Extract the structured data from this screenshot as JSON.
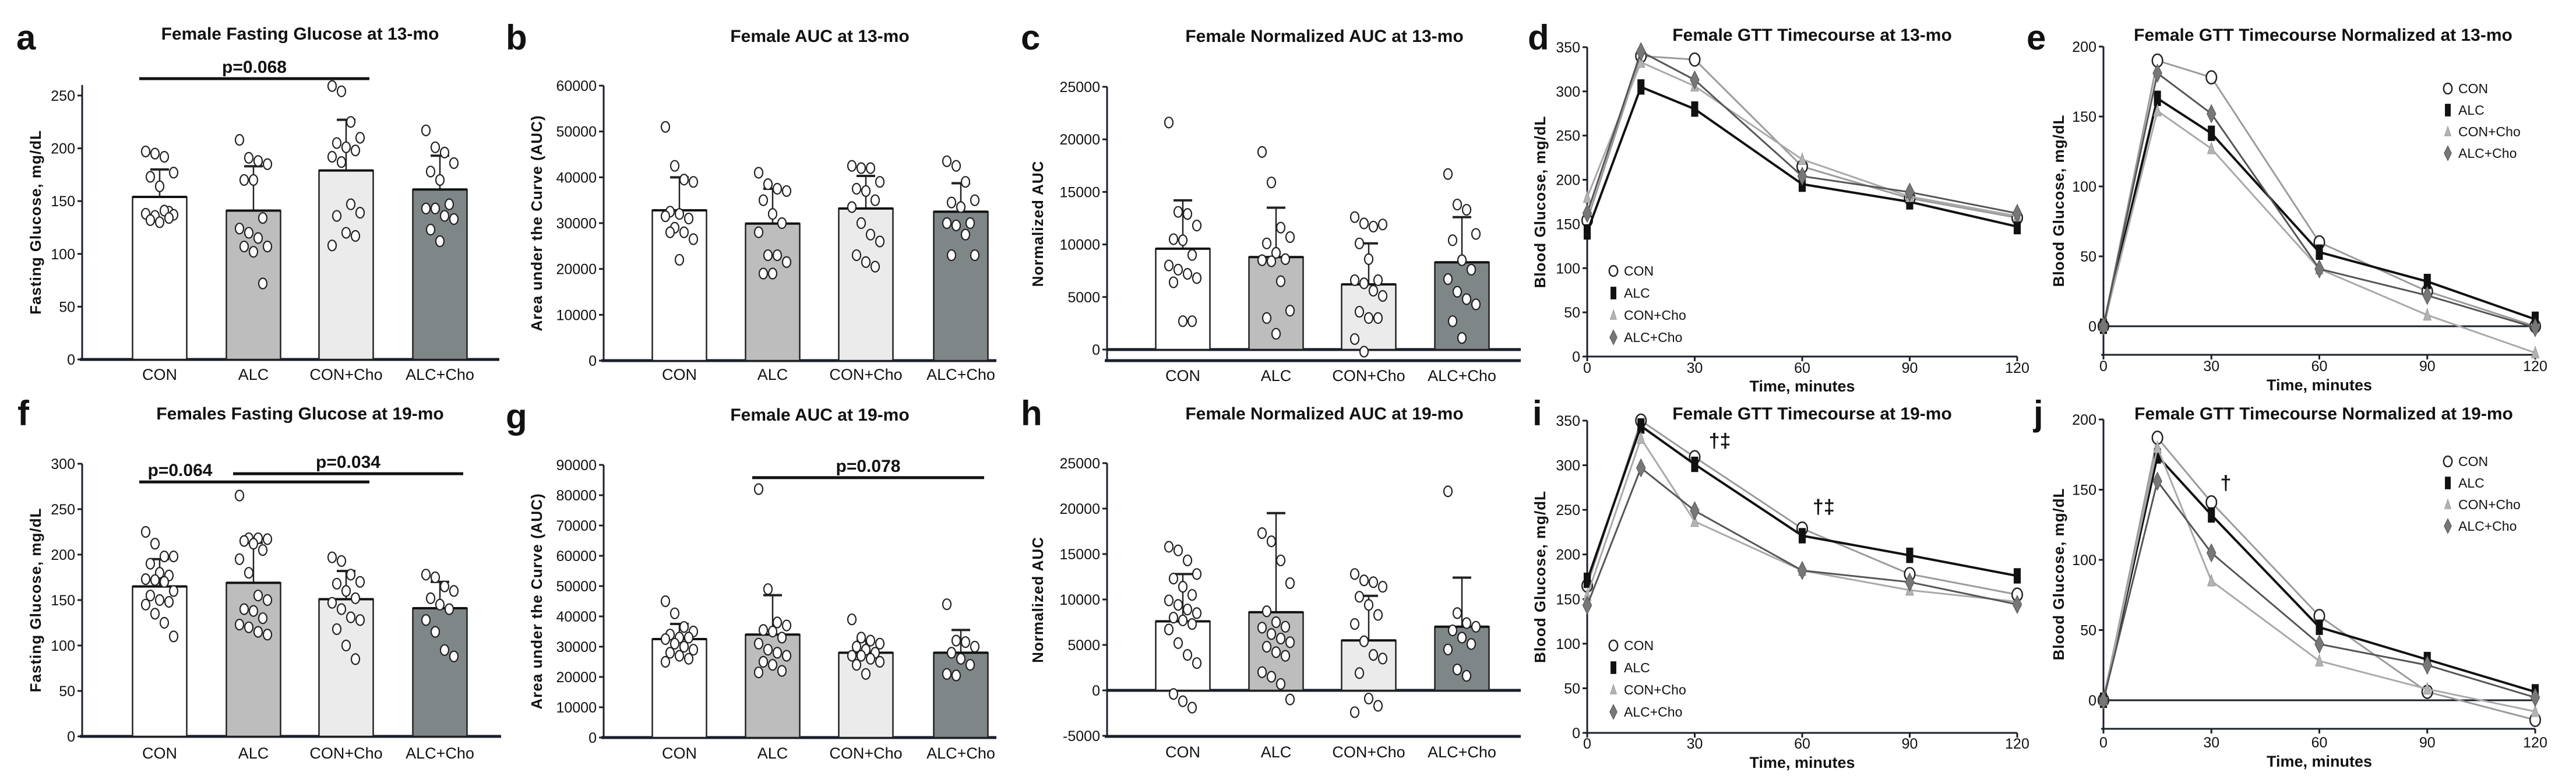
{
  "colors": {
    "CON": "#ffffff",
    "ALC": "#bdbdbd",
    "CON+Cho": "#ebebeb",
    "ALC+Cho": "#7f8688",
    "axis": "#1a1f2b"
  },
  "chart_data": [
    {
      "id": "a",
      "panel_label": "a",
      "type": "bar",
      "title": "Female Fasting Glucose at 13-mo",
      "ylabel": "Fasting Glucose, mg/dL",
      "xlabel": "",
      "categories": [
        "CON",
        "ALC",
        "CON+Cho",
        "ALC+Cho"
      ],
      "means": [
        154,
        141,
        179,
        161
      ],
      "error_upper": [
        180,
        183,
        227,
        193
      ],
      "points": [
        [
          197,
          195,
          192,
          177,
          173,
          164,
          140,
          138,
          136,
          141,
          137,
          132,
          130,
          134
        ],
        [
          208,
          191,
          188,
          185,
          170,
          170,
          134,
          124,
          120,
          115,
          107,
          107,
          102,
          72
        ],
        [
          259,
          254,
          225,
          210,
          205,
          201,
          198,
          192,
          187,
          147,
          139,
          136,
          120,
          117,
          108
        ],
        [
          217,
          201,
          196,
          186,
          178,
          170,
          147,
          143,
          143,
          136,
          133,
          123,
          112
        ]
      ],
      "yticks": [
        0,
        50,
        100,
        150,
        200,
        250
      ],
      "ylim": [
        0,
        260
      ],
      "significance": [
        {
          "label": "p=0.068",
          "from": "CON",
          "to": "CON+Cho",
          "y": 266
        }
      ]
    },
    {
      "id": "b",
      "panel_label": "b",
      "type": "bar",
      "title": "Female AUC at 13-mo",
      "ylabel": "Area under the Curve (AUC)",
      "xlabel": "",
      "categories": [
        "CON",
        "ALC",
        "CON+Cho",
        "ALC+Cho"
      ],
      "means": [
        32800,
        29900,
        33200,
        32500
      ],
      "error_upper": [
        40000,
        37500,
        40300,
        38700
      ],
      "points": [
        [
          51000,
          42500,
          39500,
          39000,
          32500,
          32000,
          31000,
          31500,
          29000,
          28000,
          26500,
          28000,
          22000
        ],
        [
          41000,
          38500,
          37500,
          37000,
          35000,
          32000,
          30000,
          28000,
          23000,
          23000,
          21500,
          19000,
          19000
        ],
        [
          42500,
          42000,
          42000,
          39000,
          37500,
          37000,
          35000,
          33500,
          30000,
          27500,
          26000,
          23000,
          21500,
          20500
        ],
        [
          43500,
          42500,
          39000,
          35000,
          34500,
          33500,
          30000,
          30000,
          29500,
          27500,
          23000,
          23000
        ]
      ],
      "yticks": [
        0,
        10000,
        20000,
        30000,
        40000,
        50000,
        60000
      ],
      "ylim": [
        0,
        60000
      ],
      "significance": []
    },
    {
      "id": "c",
      "panel_label": "c",
      "type": "bar",
      "title": "Female Normalized AUC at 13-mo",
      "ylabel": "Normalized AUC",
      "xlabel": "",
      "categories": [
        "CON",
        "ALC",
        "CON+Cho",
        "ALC+Cho"
      ],
      "means": [
        9600,
        8800,
        6200,
        8300
      ],
      "error_upper": [
        14200,
        13500,
        10100,
        12600
      ],
      "points": [
        [
          21600,
          13100,
          12900,
          11800,
          10500,
          10400,
          9000,
          8000,
          7600,
          7200,
          6800,
          6400,
          2700,
          2700
        ],
        [
          18800,
          15900,
          11600,
          10700,
          10100,
          9200,
          8600,
          8500,
          8400,
          6500,
          3700,
          3000,
          1500
        ],
        [
          12600,
          12000,
          11700,
          11900,
          10100,
          8600,
          6600,
          6600,
          6300,
          5600,
          5100,
          3600,
          3000,
          3000,
          1000,
          -200
        ],
        [
          16700,
          13800,
          13300,
          11000,
          10400,
          8500,
          7600,
          6700,
          5500,
          4800,
          4300,
          2700,
          1100
        ]
      ],
      "yticks": [
        0,
        5000,
        10000,
        15000,
        20000,
        25000
      ],
      "ylim": [
        -1000,
        25000
      ],
      "significance": []
    },
    {
      "id": "d",
      "panel_label": "d",
      "type": "line",
      "title": "Female GTT Timecourse at 13-mo",
      "ylabel": "Blood Glucose, mg/dL",
      "xlabel": "Time, minutes",
      "x": [
        0,
        15,
        30,
        60,
        90,
        120
      ],
      "xticks": [
        0,
        30,
        60,
        90,
        120
      ],
      "yticks": [
        0,
        50,
        100,
        150,
        200,
        250,
        300,
        350
      ],
      "ylim": [
        0,
        350
      ],
      "legend": "bottom-left",
      "series": [
        {
          "name": "CON",
          "marker": "circle",
          "values": [
            154,
            340,
            336,
            215,
            179,
            157
          ]
        },
        {
          "name": "ALC",
          "marker": "square",
          "values": [
            141,
            305,
            280,
            195,
            175,
            147
          ]
        },
        {
          "name": "CON+Cho",
          "marker": "triangle",
          "values": [
            180,
            333,
            306,
            223,
            181,
            159
          ]
        },
        {
          "name": "ALC+Cho",
          "marker": "diamond",
          "values": [
            162,
            345,
            313,
            204,
            186,
            162
          ]
        }
      ],
      "annotations": []
    },
    {
      "id": "e",
      "panel_label": "e",
      "type": "line",
      "title": "Female GTT Timecourse Normalized at 13-mo",
      "ylabel": "Blood Glucose, mg/dL",
      "xlabel": "Time, minutes",
      "x": [
        0,
        15,
        30,
        60,
        90,
        120
      ],
      "xticks": [
        0,
        30,
        60,
        90,
        120
      ],
      "yticks": [
        0,
        50,
        100,
        150,
        200
      ],
      "ylim": [
        -20,
        200
      ],
      "legend": "top-right",
      "series": [
        {
          "name": "CON",
          "marker": "circle",
          "values": [
            0,
            190,
            178,
            60,
            25,
            0
          ]
        },
        {
          "name": "ALC",
          "marker": "square",
          "values": [
            0,
            163,
            138,
            53,
            32,
            5
          ]
        },
        {
          "name": "CON+Cho",
          "marker": "triangle",
          "values": [
            0,
            154,
            127,
            41,
            8,
            -19
          ]
        },
        {
          "name": "ALC+Cho",
          "marker": "diamond",
          "values": [
            0,
            181,
            152,
            41,
            22,
            -1
          ]
        }
      ],
      "annotations": []
    },
    {
      "id": "f",
      "panel_label": "f",
      "type": "bar",
      "title": "Females Fasting Glucose at 19-mo",
      "ylabel": "Fasting Glucose, mg/dL",
      "xlabel": "",
      "categories": [
        "CON",
        "ALC",
        "CON+Cho",
        "ALC+Cho"
      ],
      "means": [
        165,
        169,
        151,
        141
      ],
      "error_upper": [
        195,
        213,
        182,
        170
      ],
      "points": [
        [
          225,
          212,
          198,
          198,
          190,
          180,
          177,
          173,
          172,
          170,
          160,
          155,
          150,
          148,
          145,
          135,
          125,
          110
        ],
        [
          265,
          218,
          218,
          217,
          215,
          212,
          205,
          195,
          180,
          155,
          150,
          140,
          138,
          130,
          123,
          120,
          115,
          112
        ],
        [
          197,
          193,
          178,
          170,
          168,
          160,
          152,
          147,
          140,
          131,
          128,
          118,
          100,
          85
        ],
        [
          178,
          175,
          165,
          160,
          152,
          145,
          140,
          128,
          115,
          95,
          88
        ]
      ],
      "yticks": [
        0,
        50,
        100,
        150,
        200,
        250,
        300
      ],
      "ylim": [
        0,
        300
      ],
      "significance": [
        {
          "label": "p=0.064",
          "from": "CON",
          "to": "CON+Cho",
          "y": 280
        },
        {
          "label": "p=0.034",
          "from": "ALC",
          "to": "ALC+Cho",
          "y": 289
        }
      ]
    },
    {
      "id": "g",
      "panel_label": "g",
      "type": "bar",
      "title": "Female AUC at 19-mo",
      "ylabel": "Area under the Curve (AUC)",
      "xlabel": "",
      "categories": [
        "CON",
        "ALC",
        "CON+Cho",
        "ALC+Cho"
      ],
      "means": [
        32500,
        34000,
        28000,
        28000
      ],
      "error_upper": [
        37500,
        47000,
        32000,
        35500
      ],
      "points": [
        [
          45000,
          41000,
          36500,
          35000,
          34000,
          33000,
          33000,
          32500,
          31000,
          30000,
          29000,
          28000,
          27000,
          26000,
          25000
        ],
        [
          82000,
          49000,
          38000,
          37000,
          35500,
          35000,
          33000,
          31000,
          29000,
          28000,
          27000,
          25000,
          24000,
          22000,
          21500
        ],
        [
          39000,
          33000,
          32000,
          31000,
          30000,
          29000,
          28000,
          27000,
          27000,
          26000,
          25000,
          24000,
          21000
        ],
        [
          44000,
          32000,
          31500,
          30000,
          28000,
          26000,
          24000,
          21000,
          20500
        ]
      ],
      "yticks": [
        0,
        10000,
        20000,
        30000,
        40000,
        50000,
        60000,
        70000,
        80000,
        90000
      ],
      "ylim": [
        0,
        90000
      ],
      "significance": [
        {
          "label": "p=0.078",
          "from": "ALC",
          "to": "ALC+Cho",
          "y": 85800
        }
      ]
    },
    {
      "id": "h",
      "panel_label": "h",
      "type": "bar",
      "title": "Female Normalized AUC at 19-mo",
      "ylabel": "Normalized AUC",
      "xlabel": "",
      "categories": [
        "CON",
        "ALC",
        "CON+Cho",
        "ALC+Cho"
      ],
      "means": [
        7600,
        8600,
        5500,
        7000
      ],
      "error_upper": [
        12800,
        19500,
        10400,
        12400
      ],
      "points": [
        [
          15800,
          15400,
          14300,
          12800,
          12300,
          11400,
          10500,
          9900,
          9400,
          8900,
          8500,
          8000,
          7700,
          7300,
          6700,
          5200,
          3900,
          3000,
          -400,
          -1200,
          -1900
        ],
        [
          17300,
          16400,
          14300,
          11800,
          8700,
          7500,
          7000,
          6900,
          6200,
          5700,
          5300,
          4800,
          4200,
          3800,
          2000,
          1500,
          700,
          -1000
        ],
        [
          12800,
          12100,
          11900,
          11400,
          10300,
          9400,
          8300,
          7300,
          5400,
          3900,
          3500,
          1900,
          -900,
          -1700,
          -2400
        ],
        [
          21900,
          8500,
          7400,
          7000,
          6600,
          5800,
          5100,
          4500,
          2300,
          1600
        ]
      ],
      "yticks": [
        -5000,
        0,
        5000,
        10000,
        15000,
        20000,
        25000
      ],
      "ylim": [
        -5000,
        25000
      ],
      "significance": []
    },
    {
      "id": "i",
      "panel_label": "i",
      "type": "line",
      "title": "Female GTT Timecourse at 19-mo",
      "ylabel": "Blood Glucose, mg/dL",
      "xlabel": "Time, minutes",
      "x": [
        0,
        15,
        30,
        60,
        90,
        120
      ],
      "xticks": [
        0,
        30,
        60,
        90,
        120
      ],
      "yticks": [
        0,
        50,
        100,
        150,
        200,
        250,
        300,
        350
      ],
      "ylim": [
        0,
        350
      ],
      "legend": "bottom-left",
      "series": [
        {
          "name": "CON",
          "marker": "circle",
          "values": [
            165,
            350,
            309,
            229,
            178,
            155
          ]
        },
        {
          "name": "ALC",
          "marker": "square",
          "values": [
            171,
            344,
            301,
            221,
            199,
            176
          ]
        },
        {
          "name": "CON+Cho",
          "marker": "triangle",
          "values": [
            154,
            330,
            237,
            182,
            160,
            147
          ]
        },
        {
          "name": "ALC+Cho",
          "marker": "diamond",
          "values": [
            143,
            297,
            249,
            182,
            169,
            144
          ]
        }
      ],
      "annotations": [
        {
          "text": "†‡",
          "x": 37,
          "y": 320
        },
        {
          "text": "†‡",
          "x": 66,
          "y": 246
        }
      ]
    },
    {
      "id": "j",
      "panel_label": "j",
      "type": "line",
      "title": "Female GTT Timecourse Normalized at 19-mo",
      "ylabel": "Blood Glucose, mg/dL",
      "xlabel": "Time, minutes",
      "x": [
        0,
        15,
        30,
        60,
        90,
        120
      ],
      "xticks": [
        0,
        30,
        60,
        90,
        120
      ],
      "yticks": [
        0,
        50,
        100,
        150,
        200
      ],
      "ylim": [
        -20,
        200
      ],
      "legend": "top-right",
      "series": [
        {
          "name": "CON",
          "marker": "circle",
          "values": [
            0,
            187,
            141,
            60,
            6,
            -14
          ]
        },
        {
          "name": "ALC",
          "marker": "square",
          "values": [
            0,
            174,
            132,
            52,
            29,
            6
          ]
        },
        {
          "name": "CON+Cho",
          "marker": "triangle",
          "values": [
            0,
            180,
            85,
            28,
            8,
            -8
          ]
        },
        {
          "name": "ALC+Cho",
          "marker": "diamond",
          "values": [
            0,
            156,
            105,
            40,
            25,
            2
          ]
        }
      ],
      "annotations": [
        {
          "text": "†",
          "x": 34,
          "y": 150
        }
      ]
    }
  ]
}
